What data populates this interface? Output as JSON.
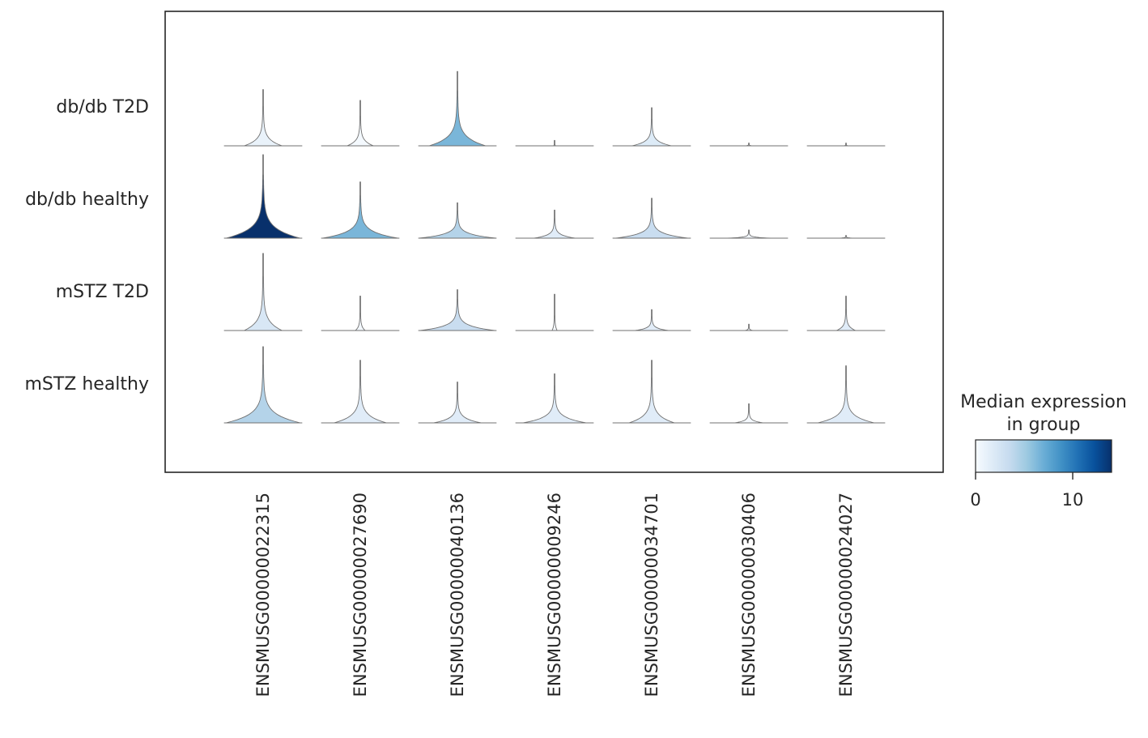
{
  "chart_data": {
    "type": "stacked-violin",
    "groups": [
      "db/db T2D",
      "db/db healthy",
      "mSTZ T2D",
      "mSTZ healthy"
    ],
    "genes": [
      "ENSMUSG00000022315",
      "ENSMUSG00000027690",
      "ENSMUSG00000040136",
      "ENSMUSG00000009246",
      "ENSMUSG00000034701",
      "ENSMUSG00000030406",
      "ENSMUSG00000024027"
    ],
    "median_expression": [
      [
        1.0,
        0.2,
        6.5,
        0.1,
        1.8,
        0.1,
        0.1
      ],
      [
        14.0,
        6.5,
        4.3,
        1.6,
        3.3,
        0.3,
        0.2
      ],
      [
        2.2,
        0.3,
        3.3,
        0.2,
        1.5,
        0.1,
        1.6
      ],
      [
        4.3,
        1.6,
        1.6,
        1.6,
        1.6,
        0.1,
        1.6
      ]
    ],
    "violin_shape": {
      "max_height": [
        [
          0.62,
          0.5,
          0.82,
          0.06,
          0.42,
          0.03,
          0.03
        ],
        [
          0.92,
          0.62,
          0.39,
          0.31,
          0.44,
          0.09,
          0.03
        ],
        [
          0.85,
          0.38,
          0.45,
          0.4,
          0.23,
          0.07,
          0.38
        ],
        [
          0.84,
          0.69,
          0.45,
          0.54,
          0.69,
          0.21,
          0.63
        ]
      ],
      "max_width": [
        [
          0.48,
          0.33,
          0.72,
          0.02,
          0.5,
          0.08,
          0.05
        ],
        [
          0.95,
          0.96,
          0.98,
          0.52,
          0.92,
          0.55,
          0.2
        ],
        [
          0.48,
          0.12,
          0.95,
          0.06,
          0.42,
          0.1,
          0.24
        ],
        [
          0.95,
          0.67,
          0.6,
          0.8,
          0.58,
          0.35,
          0.72
        ]
      ]
    },
    "colorbar": {
      "title_line1": "Median expression",
      "title_line2": "in group",
      "min": 0,
      "max": 14,
      "ticks": [
        0,
        10
      ],
      "colormap": "Blues",
      "colors": [
        "#f7fbff",
        "#deebf7",
        "#c6dbef",
        "#9ecae1",
        "#6baed6",
        "#4292c6",
        "#2171b5",
        "#08519c",
        "#08306b"
      ]
    },
    "xlabel": "",
    "ylabel": ""
  }
}
